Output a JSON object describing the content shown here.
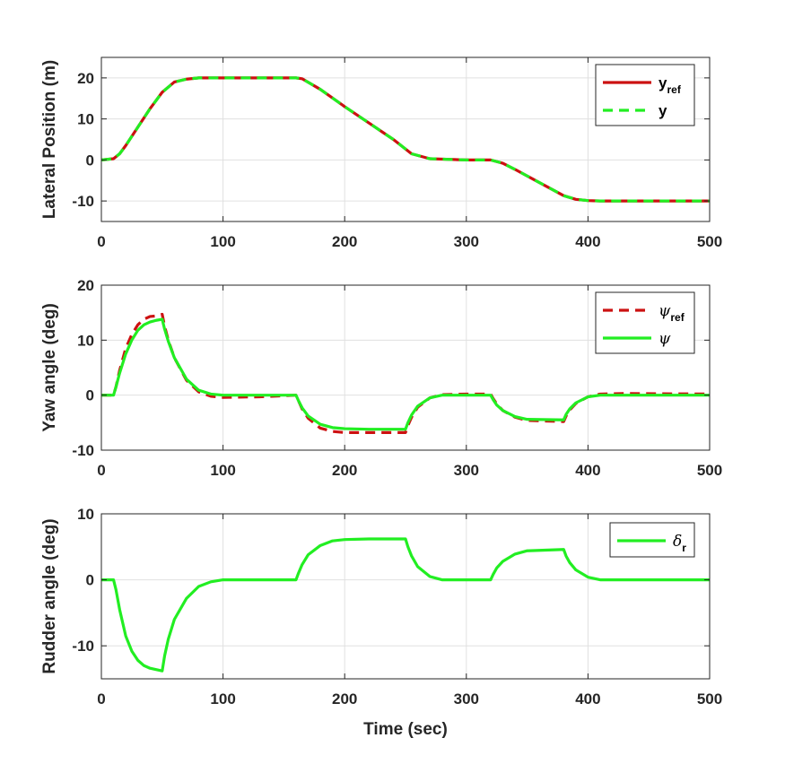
{
  "colors": {
    "ref": "#cc1111",
    "actual": "#22ee22",
    "grid": "#e0e0e0",
    "axis": "#262626"
  },
  "chart_data": [
    {
      "type": "line",
      "ylabel": "Lateral Position (m)",
      "xlabel": "",
      "xlim": [
        0,
        500
      ],
      "ylim": [
        -15,
        25
      ],
      "xticks": [
        0,
        100,
        200,
        300,
        400,
        500
      ],
      "yticks": [
        -10,
        0,
        10,
        20
      ],
      "grid": true,
      "legend_location": "top-right",
      "series": [
        {
          "name": "y_ref",
          "label_main": "y",
          "label_sub": "ref",
          "color": "#cc1111",
          "style": "solid",
          "x": [
            0,
            10,
            15,
            20,
            30,
            40,
            50,
            60,
            70,
            80,
            100,
            160,
            165,
            180,
            200,
            220,
            240,
            255,
            270,
            300,
            320,
            330,
            340,
            360,
            380,
            390,
            400,
            410,
            430,
            500
          ],
          "y": [
            0,
            0.3,
            1.5,
            3.5,
            8,
            12.5,
            16.5,
            19,
            19.7,
            20,
            20,
            20,
            19.8,
            17.2,
            13,
            9,
            5,
            1.5,
            0.3,
            0,
            0,
            -0.8,
            -2.3,
            -5.5,
            -8.7,
            -9.6,
            -9.9,
            -10,
            -10,
            -10
          ]
        },
        {
          "name": "y",
          "label_main": "y",
          "label_sub": "",
          "color": "#22ee22",
          "style": "dashed",
          "x": [
            0,
            10,
            15,
            20,
            30,
            40,
            50,
            60,
            70,
            80,
            100,
            160,
            165,
            180,
            200,
            220,
            240,
            255,
            270,
            300,
            320,
            330,
            340,
            360,
            380,
            390,
            400,
            410,
            430,
            500
          ],
          "y": [
            0,
            0.3,
            1.5,
            3.5,
            8,
            12.5,
            16.5,
            19,
            19.7,
            20,
            20,
            20,
            19.8,
            17.2,
            13,
            9,
            5,
            1.5,
            0.3,
            0,
            0,
            -0.8,
            -2.3,
            -5.5,
            -8.7,
            -9.6,
            -9.9,
            -10,
            -10,
            -10
          ]
        }
      ]
    },
    {
      "type": "line",
      "ylabel": "Yaw angle (deg)",
      "xlabel": "",
      "xlim": [
        0,
        500
      ],
      "ylim": [
        -10,
        20
      ],
      "xticks": [
        0,
        100,
        200,
        300,
        400,
        500
      ],
      "yticks": [
        -10,
        0,
        10,
        20
      ],
      "grid": true,
      "legend_location": "top-right",
      "series": [
        {
          "name": "ψ_ref",
          "label_main": "ψ",
          "label_sub": "ref",
          "color": "#cc1111",
          "style": "dashed",
          "x": [
            0,
            10,
            12,
            15,
            20,
            25,
            30,
            35,
            40,
            45,
            50,
            52,
            55,
            60,
            70,
            80,
            90,
            100,
            130,
            160,
            162,
            165,
            170,
            180,
            190,
            200,
            220,
            250,
            252,
            255,
            260,
            270,
            280,
            300,
            320,
            322,
            325,
            330,
            340,
            350,
            380,
            382,
            385,
            390,
            400,
            410,
            430,
            500
          ],
          "y": [
            0,
            0,
            1.5,
            4.5,
            8.5,
            11,
            12.8,
            13.8,
            14.3,
            14.4,
            14.7,
            12.5,
            10,
            6.8,
            2.7,
            0.6,
            -0.2,
            -0.4,
            -0.3,
            0,
            -1,
            -2.5,
            -4.2,
            -6,
            -6.6,
            -6.8,
            -6.8,
            -6.8,
            -5.5,
            -4,
            -2.2,
            -0.5,
            0.1,
            0.2,
            0.2,
            -0.6,
            -1.6,
            -2.8,
            -4,
            -4.6,
            -4.8,
            -3.8,
            -2.7,
            -1.5,
            -0.3,
            0.2,
            0.3,
            0.2
          ]
        },
        {
          "name": "ψ",
          "label_main": "ψ",
          "label_sub": "",
          "color": "#22ee22",
          "style": "solid",
          "x": [
            0,
            10,
            12,
            15,
            20,
            25,
            30,
            35,
            40,
            45,
            50,
            52,
            55,
            60,
            70,
            80,
            90,
            100,
            130,
            160,
            162,
            165,
            170,
            180,
            190,
            200,
            220,
            250,
            252,
            255,
            260,
            270,
            280,
            300,
            320,
            322,
            325,
            330,
            340,
            350,
            380,
            382,
            385,
            390,
            400,
            410,
            430,
            500
          ],
          "y": [
            0,
            0,
            1.5,
            4,
            7.5,
            10,
            11.8,
            12.8,
            13.3,
            13.6,
            13.8,
            12,
            9.8,
            6.8,
            2.9,
            0.9,
            0.2,
            0,
            0,
            0,
            -1,
            -2.3,
            -3.8,
            -5.3,
            -5.9,
            -6.1,
            -6.2,
            -6.2,
            -5,
            -3.6,
            -2,
            -0.5,
            0,
            0,
            0,
            -0.8,
            -1.8,
            -2.8,
            -3.9,
            -4.4,
            -4.5,
            -3.5,
            -2.5,
            -1.4,
            -0.3,
            0,
            0,
            0
          ]
        }
      ]
    },
    {
      "type": "line",
      "ylabel": "Rudder angle (deg)",
      "xlabel": "Time (sec)",
      "xlim": [
        0,
        500
      ],
      "ylim": [
        -15,
        10
      ],
      "xticks": [
        0,
        100,
        200,
        300,
        400,
        500
      ],
      "yticks": [
        -10,
        0,
        10
      ],
      "grid": true,
      "legend_location": "top-right",
      "series": [
        {
          "name": "δ_r",
          "label_main": "δ",
          "label_sub": "r",
          "color": "#22ee22",
          "style": "solid",
          "x": [
            0,
            10,
            12,
            15,
            20,
            25,
            30,
            35,
            40,
            45,
            50,
            52,
            55,
            60,
            70,
            80,
            90,
            100,
            130,
            160,
            162,
            165,
            170,
            180,
            190,
            200,
            220,
            250,
            252,
            255,
            260,
            270,
            280,
            300,
            320,
            322,
            325,
            330,
            340,
            350,
            380,
            382,
            385,
            390,
            400,
            410,
            430,
            500
          ],
          "y": [
            0,
            0,
            -1.5,
            -4.5,
            -8.5,
            -10.8,
            -12.2,
            -13,
            -13.4,
            -13.6,
            -13.8,
            -11.5,
            -9,
            -6,
            -2.8,
            -1,
            -0.3,
            0,
            0,
            0,
            1,
            2.3,
            3.8,
            5.2,
            5.9,
            6.1,
            6.2,
            6.2,
            5,
            3.6,
            2,
            0.5,
            0,
            0,
            0,
            0.8,
            1.8,
            2.8,
            3.9,
            4.4,
            4.6,
            3.6,
            2.6,
            1.5,
            0.4,
            0,
            0,
            0
          ]
        }
      ]
    }
  ]
}
